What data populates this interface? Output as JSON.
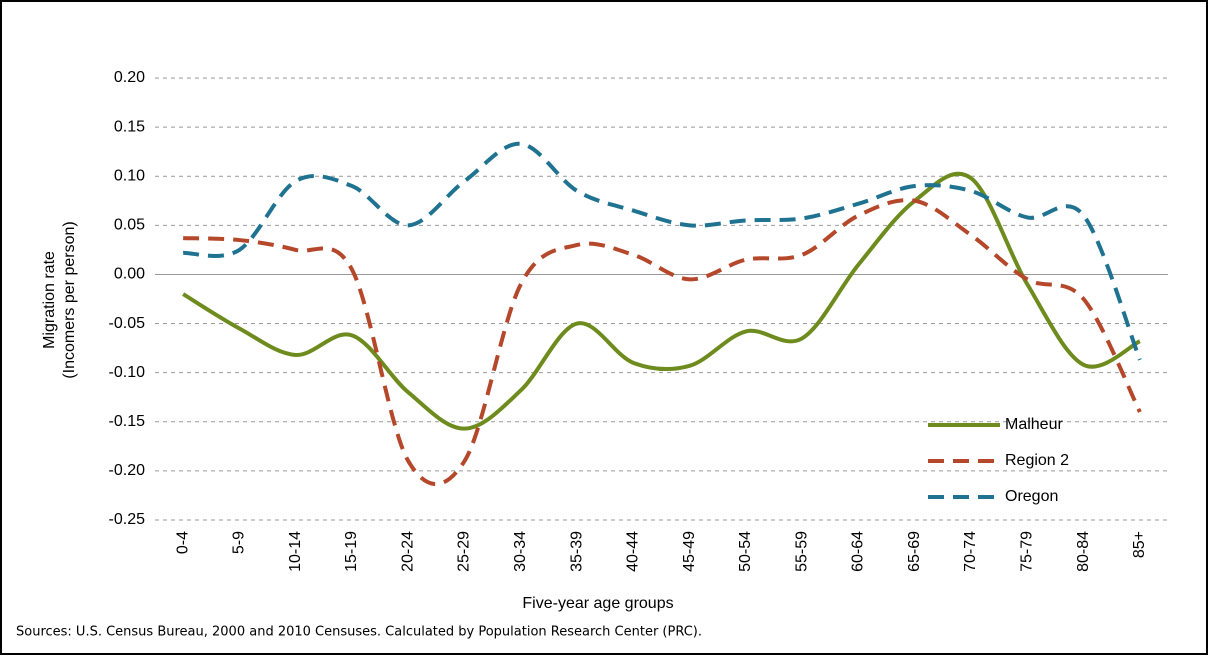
{
  "chart_data": {
    "type": "line",
    "y_label": [
      "Migration rate",
      "(Incomers per person)"
    ],
    "x_label": "Five-year age groups",
    "source": "Sources: U.S. Census Bureau, 2000 and 2010 Censuses. Calculated by Population Research Center (PRC).",
    "categories": [
      "0-4",
      "5-9",
      "10-14",
      "15-19",
      "20-24",
      "25-29",
      "30-34",
      "35-39",
      "40-44",
      "45-49",
      "50-54",
      "55-59",
      "60-64",
      "65-69",
      "70-74",
      "75-79",
      "80-84",
      "85+"
    ],
    "series": [
      {
        "name": "Malheur",
        "color": "#6e8b1e",
        "dash": "solid",
        "values": [
          -0.02,
          -0.055,
          -0.082,
          -0.062,
          -0.12,
          -0.157,
          -0.118,
          -0.05,
          -0.09,
          -0.093,
          -0.058,
          -0.065,
          0.01,
          0.075,
          0.098,
          -0.01,
          -0.092,
          -0.068
        ]
      },
      {
        "name": "Region 2",
        "color": "#b5482a",
        "dash": "dashed",
        "values": [
          0.037,
          0.035,
          0.025,
          0.005,
          -0.19,
          -0.19,
          -0.01,
          0.03,
          0.02,
          -0.005,
          0.015,
          0.02,
          0.06,
          0.075,
          0.04,
          -0.005,
          -0.025,
          -0.14
        ]
      },
      {
        "name": "Oregon",
        "color": "#1f7391",
        "dash": "dashed",
        "values": [
          0.022,
          0.025,
          0.095,
          0.09,
          0.05,
          0.095,
          0.133,
          0.085,
          0.065,
          0.05,
          0.055,
          0.057,
          0.072,
          0.09,
          0.085,
          0.058,
          0.06,
          -0.087
        ]
      }
    ],
    "ylim": [
      -0.25,
      0.2
    ],
    "yticks": [
      {
        "value": 0.2,
        "label": "0.20"
      },
      {
        "value": 0.15,
        "label": "0.15"
      },
      {
        "value": 0.1,
        "label": "0.10"
      },
      {
        "value": 0.05,
        "label": "0.05"
      },
      {
        "value": 0,
        "label": "0.00"
      },
      {
        "value": -0.05,
        "label": "-0.05"
      },
      {
        "value": -0.1,
        "label": "-0.10"
      },
      {
        "value": -0.15,
        "label": "-0.15"
      },
      {
        "value": -0.2,
        "label": "-0.20"
      },
      {
        "value": -0.25,
        "label": "-0.25"
      }
    ],
    "negative_tick_color": "#e00000",
    "grid": true,
    "legend": "lower right"
  }
}
